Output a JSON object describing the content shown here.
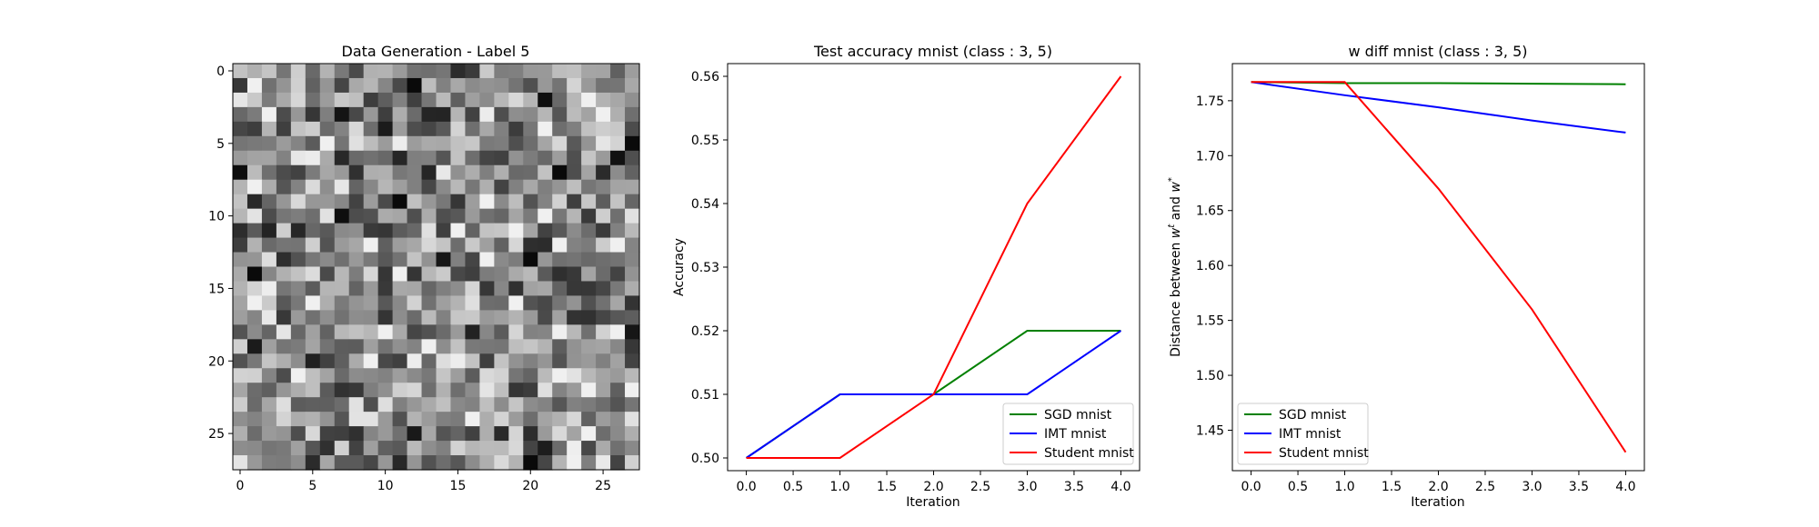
{
  "chart_data": [
    {
      "type": "heatmap",
      "title": "Data Generation - Label 5",
      "colormap": "gray",
      "grid_size": [
        28,
        28
      ],
      "xlim": [
        -0.5,
        27.5
      ],
      "ylim": [
        27.5,
        -0.5
      ],
      "xticks": [
        0,
        5,
        10,
        15,
        20,
        25
      ],
      "yticks": [
        0,
        5,
        10,
        15,
        20,
        25
      ],
      "grid": false,
      "xlabel": "",
      "ylabel": ""
    },
    {
      "type": "line",
      "title": "Test accuracy mnist (class : 3, 5)",
      "xlabel": "Iteration",
      "ylabel": "Accuracy",
      "x": [
        0,
        1,
        2,
        3,
        4
      ],
      "xlim": [
        -0.2,
        4.2
      ],
      "ylim": [
        0.498,
        0.562
      ],
      "xticks": [
        "0.0",
        "0.5",
        "1.0",
        "1.5",
        "2.0",
        "2.5",
        "3.0",
        "3.5",
        "4.0"
      ],
      "yticks": [
        "0.50",
        "0.51",
        "0.52",
        "0.53",
        "0.54",
        "0.55",
        "0.56"
      ],
      "legend_position": "lower-right",
      "grid": false,
      "series": [
        {
          "name": "SGD mnist",
          "color": "#008000",
          "values": [
            0.5,
            0.51,
            0.51,
            0.52,
            0.52
          ]
        },
        {
          "name": "IMT mnist",
          "color": "#0000ff",
          "values": [
            0.5,
            0.51,
            0.51,
            0.51,
            0.52
          ]
        },
        {
          "name": "Student mnist",
          "color": "#ff0000",
          "values": [
            0.5,
            0.5,
            0.51,
            0.54,
            0.56
          ]
        }
      ]
    },
    {
      "type": "line",
      "title": "w diff mnist (class : 3, 5)",
      "xlabel": "Iteration",
      "ylabel": "Distance between w^t and w^*",
      "ylabel_parts": {
        "prefix": "Distance between ",
        "w1": "w",
        "sup1": "t",
        "mid": " and ",
        "w2": "w",
        "sup2": "*"
      },
      "x": [
        0,
        1,
        2,
        3,
        4
      ],
      "xlim": [
        -0.2,
        4.2
      ],
      "ylim": [
        1.4132,
        1.7838
      ],
      "xticks": [
        "0.0",
        "0.5",
        "1.0",
        "1.5",
        "2.0",
        "2.5",
        "3.0",
        "3.5",
        "4.0"
      ],
      "yticks": [
        "1.45",
        "1.50",
        "1.55",
        "1.60",
        "1.65",
        "1.70",
        "1.75"
      ],
      "legend_position": "lower-left",
      "grid": false,
      "series": [
        {
          "name": "SGD mnist",
          "color": "#008000",
          "values": [
            1.767,
            1.766,
            1.766,
            1.7655,
            1.765
          ]
        },
        {
          "name": "IMT mnist",
          "color": "#0000ff",
          "values": [
            1.767,
            1.755,
            1.744,
            1.732,
            1.721
          ]
        },
        {
          "name": "Student mnist",
          "color": "#ff0000",
          "values": [
            1.767,
            1.767,
            1.67,
            1.56,
            1.43
          ]
        }
      ]
    }
  ]
}
